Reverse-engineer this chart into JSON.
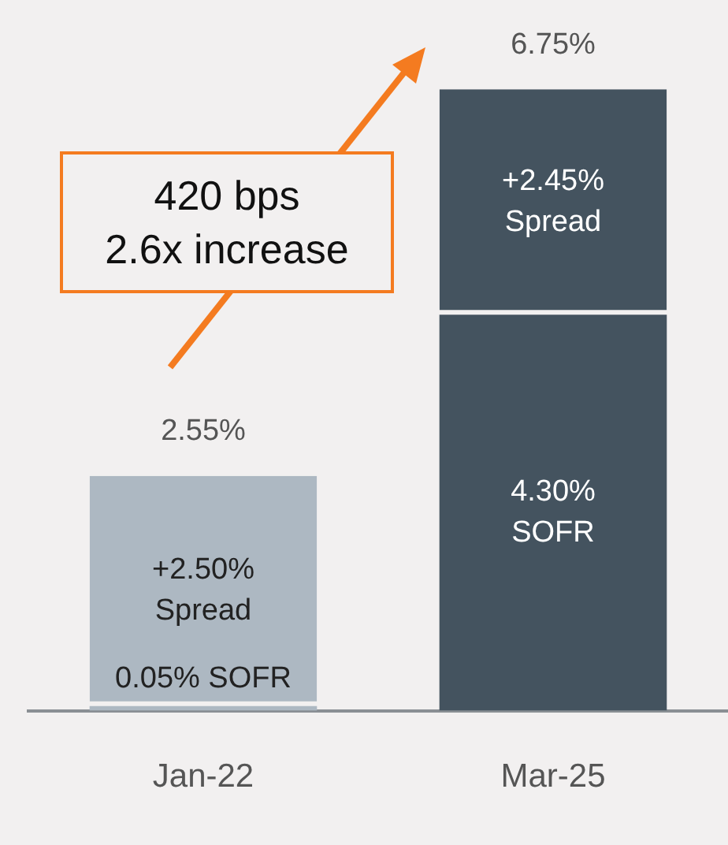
{
  "chart_data": {
    "type": "bar",
    "stacked": true,
    "categories": [
      "Jan-22",
      "Mar-25"
    ],
    "series": [
      {
        "colors": [
          "#adb8c2",
          "#44535f"
        ],
        "values": [
          0.05,
          4.3
        ],
        "value_labels": [
          "0.05% SOFR",
          "4.30%\nSOFR"
        ]
      },
      {
        "colors": [
          "#adb8c2",
          "#44535f"
        ],
        "values": [
          2.5,
          2.45
        ],
        "value_labels": [
          "+2.50%\nSpread",
          "+2.45%\nSpread"
        ]
      }
    ],
    "totals": [
      "2.55%",
      "6.75%"
    ],
    "annotations": [
      "420 bps",
      "2.6x increase"
    ],
    "legend": false,
    "grid": false,
    "tick_labels": "x"
  }
}
